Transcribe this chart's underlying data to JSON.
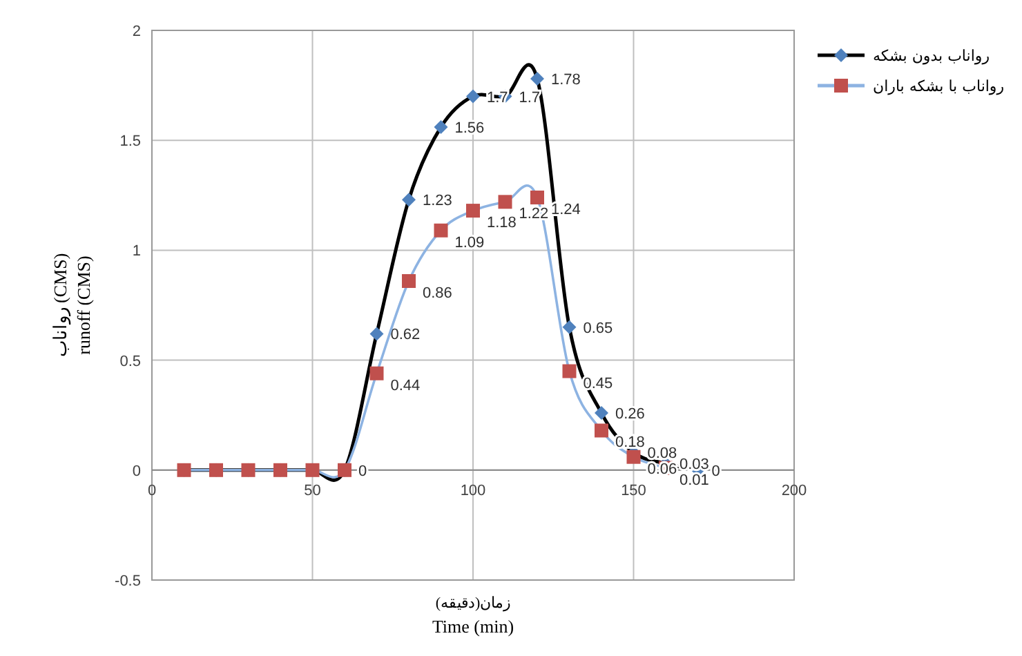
{
  "chart_data": {
    "type": "line",
    "xlabel": "زمان(دقیقه)\nTime (min)",
    "ylabel": "رواناب (CMS)\nrunoff (CMS)",
    "xlim": [
      0,
      200
    ],
    "xticks": [
      0,
      50,
      100,
      150,
      200
    ],
    "ylim": [
      -0.5,
      2
    ],
    "yticks": [
      -0.5,
      0,
      0.5,
      1,
      1.5,
      2
    ],
    "grid": true,
    "legend": "top right",
    "series": [
      {
        "name": "رواناب بدون بشکه",
        "color": "#000000",
        "marker": "diamond",
        "colors": [
          "#4f81bd",
          "#4f81bd",
          "#4f81bd",
          "#4f81bd",
          "#4f81bd",
          "#4f81bd",
          "#4f81bd",
          "#4f81bd",
          "#4f81bd",
          "#4f81bd",
          "#4f81bd",
          "#4f81bd",
          "#4f81bd",
          "#4f81bd",
          "#4f81bd",
          "#4f81bd",
          "#4f81bd"
        ],
        "x": [
          10,
          20,
          30,
          40,
          50,
          60,
          70,
          80,
          90,
          100,
          110,
          120,
          130,
          140,
          150,
          160,
          170
        ],
        "values": [
          0,
          0,
          0,
          0,
          0,
          0,
          0.62,
          1.23,
          1.56,
          1.7,
          1.7,
          1.78,
          0.65,
          0.26,
          0.08,
          0.03,
          0
        ],
        "value_labels": [
          null,
          null,
          null,
          null,
          null,
          "0",
          "0.62",
          "1.23",
          "1.56",
          "1.7",
          "1.7",
          "1.78",
          "0.65",
          "0.26",
          "0.08",
          "0.03",
          "0"
        ]
      },
      {
        "name": "رواناب با بشکه باران",
        "color": "#8db3e2",
        "marker": "square",
        "colors": [
          "#c0504d",
          "#c0504d",
          "#c0504d",
          "#c0504d",
          "#c0504d",
          "#c0504d",
          "#c0504d",
          "#c0504d",
          "#c0504d",
          "#c0504d",
          "#c0504d",
          "#c0504d",
          "#c0504d",
          "#c0504d",
          "#c0504d",
          "#c0504d"
        ],
        "x": [
          10,
          20,
          30,
          40,
          50,
          60,
          70,
          80,
          90,
          100,
          110,
          120,
          130,
          140,
          150,
          160
        ],
        "values": [
          0,
          0,
          0,
          0,
          0,
          0,
          0.44,
          0.86,
          1.09,
          1.18,
          1.22,
          1.24,
          0.45,
          0.18,
          0.06,
          0.01
        ],
        "value_labels": [
          null,
          null,
          null,
          null,
          null,
          null,
          "0.44",
          "0.86",
          "1.09",
          "1.18",
          "1.22",
          "1.24",
          "0.45",
          "0.18",
          "0.06",
          "0.01"
        ]
      }
    ]
  }
}
